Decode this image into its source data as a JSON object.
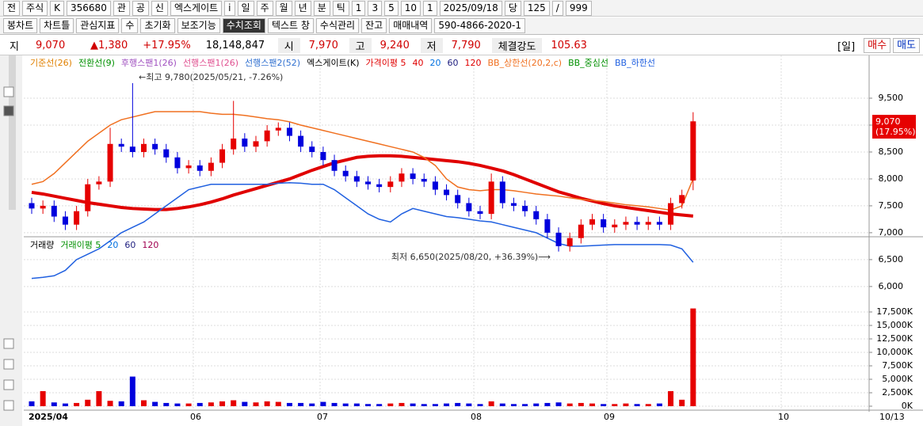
{
  "toolbar": {
    "row1": [
      "전",
      "주식",
      "K",
      "356680",
      "관",
      "공",
      "신",
      "엑스게이트",
      "i",
      "일",
      "주",
      "월",
      "년",
      "분",
      "틱",
      "1",
      "3",
      "5",
      "10",
      "1",
      "2025/09/18",
      "당",
      "125",
      "/",
      "999"
    ],
    "row2": [
      "봉차트",
      "차트틀",
      "관심지표",
      "수",
      "초기화",
      "보조기능",
      "수치조회",
      "텍스트 창",
      "수식관리",
      "잔고",
      "매매내역",
      "590-4866-2020-1"
    ]
  },
  "quote": {
    "tab": "지",
    "price": "9,070",
    "change": "▲1,380",
    "rate": "+17.95%",
    "volume": "18,148,847",
    "open_label": "시",
    "open": "7,970",
    "high_label": "고",
    "high": "9,240",
    "low_label": "저",
    "low": "7,790",
    "strength_label": "체결강도",
    "strength": "105.63",
    "period": "[일]",
    "buy": "매수",
    "sell": "매도"
  },
  "chart_data": [
    {
      "type": "candlestick",
      "legend": [
        {
          "name": "기준선(26)",
          "color": "#e08000"
        },
        {
          "name": "전환선(9)",
          "color": "#009000"
        },
        {
          "name": "후행스팬1(26)",
          "color": "#a050c0"
        },
        {
          "name": "선행스팬1(26)",
          "color": "#e05090"
        },
        {
          "name": "선행스팬2(52)",
          "color": "#3070d0"
        },
        {
          "name": "엑스게이트(K)",
          "color": "#000000"
        },
        {
          "name": "가격이평 5",
          "color": "#e00000"
        },
        {
          "name": "40",
          "color": "#e00000"
        },
        {
          "name": "20",
          "color": "#0070e0"
        },
        {
          "name": "60",
          "color": "#202080"
        },
        {
          "name": "120",
          "color": "#e00000"
        },
        {
          "name": "BB_상한선(20,2,c)",
          "color": "#f07020"
        },
        {
          "name": "BB_중심선",
          "color": "#009000"
        },
        {
          "name": "BB_하한선",
          "color": "#2060e0"
        }
      ],
      "up_color": "#e60000",
      "down_color": "#0000dd",
      "open": [
        7550,
        7450,
        7500,
        7300,
        7150,
        7400,
        7900,
        7950,
        8650,
        8600,
        8500,
        8650,
        8550,
        8400,
        8200,
        8250,
        8150,
        8300,
        8550,
        8750,
        8600,
        8700,
        8900,
        8950,
        8800,
        8600,
        8500,
        8350,
        8150,
        8050,
        7950,
        7900,
        7850,
        7950,
        8100,
        8000,
        7950,
        7800,
        7700,
        7550,
        7400,
        7350,
        7950,
        7550,
        7500,
        7400,
        7250,
        7000,
        6750,
        6900,
        7150,
        7250,
        7100,
        7150,
        7200,
        7150,
        7200,
        7150,
        7550,
        7970
      ],
      "high": [
        7650,
        7600,
        7600,
        7400,
        7500,
        8000,
        8050,
        8950,
        8750,
        9780,
        8750,
        8750,
        8650,
        8500,
        8350,
        8350,
        8400,
        8650,
        9450,
        8850,
        8800,
        9000,
        9050,
        9050,
        8900,
        8700,
        8600,
        8450,
        8250,
        8150,
        8050,
        8000,
        8050,
        8200,
        8200,
        8100,
        8050,
        7900,
        7800,
        7650,
        7500,
        8100,
        8050,
        7650,
        7600,
        7500,
        7350,
        7100,
        7000,
        7250,
        7350,
        7350,
        7250,
        7300,
        7300,
        7300,
        7300,
        7650,
        7800,
        9240
      ],
      "low": [
        7350,
        7350,
        7200,
        7050,
        7050,
        7300,
        7800,
        7850,
        8500,
        8400,
        8400,
        8450,
        8300,
        8100,
        8100,
        8050,
        8050,
        8200,
        8450,
        8500,
        8500,
        8600,
        8800,
        8700,
        8500,
        8400,
        8250,
        8050,
        7950,
        7850,
        7800,
        7750,
        7750,
        7850,
        7900,
        7850,
        7700,
        7600,
        7450,
        7300,
        7250,
        7250,
        7450,
        7400,
        7300,
        7150,
        6900,
        6650,
        6650,
        6800,
        7050,
        7000,
        7000,
        7050,
        7050,
        7050,
        7050,
        7050,
        7450,
        7790
      ],
      "close": [
        7450,
        7500,
        7300,
        7150,
        7400,
        7900,
        7950,
        8650,
        8600,
        8500,
        8650,
        8550,
        8400,
        8200,
        8250,
        8150,
        8300,
        8550,
        8750,
        8600,
        8700,
        8900,
        8950,
        8800,
        8600,
        8500,
        8350,
        8150,
        8050,
        7950,
        7900,
        7850,
        7950,
        8100,
        8000,
        7950,
        7800,
        7700,
        7550,
        7400,
        7350,
        7950,
        7550,
        7500,
        7400,
        7250,
        7000,
        6750,
        6900,
        7150,
        7250,
        7100,
        7150,
        7200,
        7150,
        7200,
        7150,
        7550,
        7700,
        9070
      ],
      "series": [
        {
          "name": "120",
          "color": "#e00000",
          "width": 4,
          "values": [
            7750,
            7720,
            7680,
            7640,
            7600,
            7560,
            7530,
            7500,
            7470,
            7450,
            7440,
            7430,
            7430,
            7450,
            7480,
            7520,
            7570,
            7630,
            7700,
            7760,
            7820,
            7880,
            7940,
            8000,
            8080,
            8160,
            8230,
            8300,
            8350,
            8400,
            8420,
            8430,
            8430,
            8420,
            8400,
            8380,
            8360,
            8340,
            8320,
            8290,
            8250,
            8200,
            8150,
            8080,
            8000,
            7920,
            7840,
            7760,
            7700,
            7640,
            7590,
            7540,
            7500,
            7470,
            7440,
            7410,
            7380,
            7350,
            7330,
            7310
          ]
        },
        {
          "name": "BB_상한선(20,2,c)",
          "color": "#f07020",
          "width": 1.5,
          "values": [
            7900,
            7950,
            8100,
            8300,
            8500,
            8700,
            8850,
            9000,
            9100,
            9150,
            9200,
            9250,
            9250,
            9250,
            9250,
            9250,
            9220,
            9200,
            9200,
            9180,
            9150,
            9120,
            9100,
            9060,
            9000,
            8950,
            8900,
            8850,
            8800,
            8750,
            8700,
            8650,
            8600,
            8550,
            8500,
            8400,
            8250,
            8000,
            7850,
            7800,
            7780,
            7800,
            7800,
            7780,
            7750,
            7720,
            7700,
            7680,
            7650,
            7620,
            7600,
            7580,
            7550,
            7520,
            7500,
            7480,
            7450,
            7420,
            7500,
            8000
          ]
        },
        {
          "name": "BB_하한선",
          "color": "#2060e0",
          "width": 1.5,
          "values": [
            6150,
            6170,
            6200,
            6300,
            6500,
            6600,
            6700,
            6850,
            7000,
            7100,
            7200,
            7350,
            7500,
            7650,
            7800,
            7850,
            7900,
            7900,
            7900,
            7900,
            7900,
            7900,
            7920,
            7930,
            7920,
            7900,
            7900,
            7800,
            7650,
            7500,
            7350,
            7250,
            7200,
            7350,
            7450,
            7400,
            7350,
            7300,
            7280,
            7250,
            7220,
            7200,
            7150,
            7100,
            7050,
            7000,
            6900,
            6800,
            6750,
            6750,
            6760,
            6770,
            6780,
            6780,
            6780,
            6780,
            6780,
            6770,
            6700,
            6450
          ]
        }
      ],
      "ylim": [
        5880,
        10030
      ],
      "yticks": [
        {
          "value": 6000,
          "label": "6,000"
        },
        {
          "value": 6500,
          "label": "6,500"
        },
        {
          "value": 7000,
          "label": "7,000"
        },
        {
          "value": 7500,
          "label": "7,500"
        },
        {
          "value": 8000,
          "label": "8,000"
        },
        {
          "value": 8500,
          "label": "8,500"
        },
        {
          "value": 9000,
          "label": "9,000"
        },
        {
          "value": 9500,
          "label": "9,500"
        }
      ],
      "grid": true,
      "xlabels": [
        "2025/04",
        "06",
        "07",
        "08",
        "09",
        "10",
        "10/13"
      ],
      "annotations": [
        "←최고 9,780(2025/05/21, -7.26%)",
        "최저 6,650(2025/08/20, +36.39%)⟶"
      ],
      "last_label": [
        "9,070",
        "(17.95%)"
      ]
    },
    {
      "type": "bar",
      "legend": [
        {
          "name": "거래량",
          "color": "#000000"
        },
        {
          "name": "거래이평 5",
          "color": "#009000"
        },
        {
          "name": "20",
          "color": "#0070e0"
        },
        {
          "name": "60",
          "color": "#202080"
        },
        {
          "name": "120",
          "color": "#a00050"
        }
      ],
      "values": [
        900,
        2800,
        700,
        500,
        600,
        1200,
        2800,
        1000,
        900,
        5500,
        1100,
        800,
        600,
        500,
        500,
        600,
        700,
        900,
        1100,
        800,
        700,
        900,
        800,
        600,
        600,
        500,
        800,
        600,
        500,
        500,
        400,
        400,
        500,
        600,
        500,
        400,
        400,
        500,
        600,
        500,
        400,
        900,
        500,
        400,
        400,
        500,
        600,
        700,
        500,
        600,
        500,
        400,
        400,
        500,
        400,
        400,
        500,
        2800,
        1200,
        18149
      ],
      "ylim": [
        -590,
        18380
      ],
      "yticks": [
        {
          "value": 0,
          "label": "0K"
        },
        {
          "value": 2500,
          "label": "2,500K"
        },
        {
          "value": 5000,
          "label": "5,000K"
        },
        {
          "value": 7500,
          "label": "7,500K"
        },
        {
          "value": 10000,
          "label": "10,000K"
        },
        {
          "value": 12500,
          "label": "12,500K"
        },
        {
          "value": 15000,
          "label": "15,000K"
        },
        {
          "value": 17500,
          "label": "17,500K"
        }
      ],
      "grid": true
    }
  ]
}
